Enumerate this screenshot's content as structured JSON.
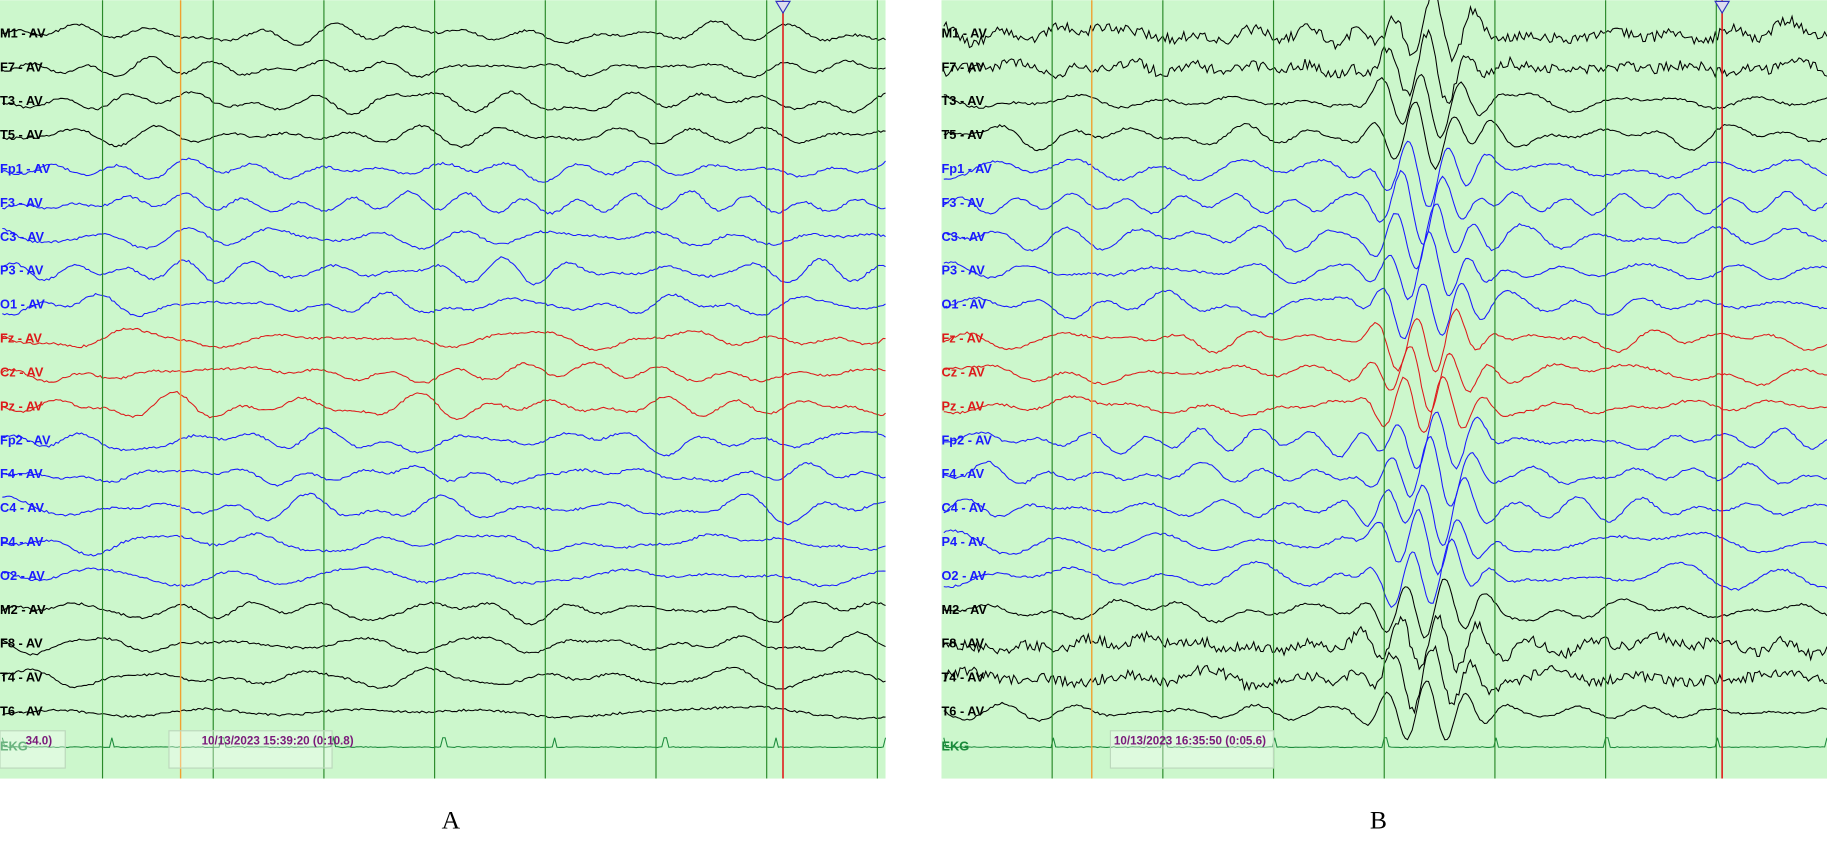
{
  "panels": [
    {
      "caption": "A",
      "timestamp": "10/13/2023 15:39:20 (0:10.8)",
      "corner_text": "34.0)"
    },
    {
      "caption": "B",
      "timestamp": "10/13/2023 16:35:50 (0:05.6)"
    }
  ],
  "channels": [
    {
      "label": "M1 - AV",
      "color": "#000000"
    },
    {
      "label": "F7 - AV",
      "color": "#000000"
    },
    {
      "label": "T3 - AV",
      "color": "#000000"
    },
    {
      "label": "T5 - AV",
      "color": "#000000"
    },
    {
      "label": "Fp1 - AV",
      "color": "#1a1aff"
    },
    {
      "label": "F3 - AV",
      "color": "#1a1aff"
    },
    {
      "label": "C3 - AV",
      "color": "#1a1aff"
    },
    {
      "label": "P3 - AV",
      "color": "#1a1aff"
    },
    {
      "label": "O1 - AV",
      "color": "#1a1aff"
    },
    {
      "label": "Fz - AV",
      "color": "#dd1a1a"
    },
    {
      "label": "Cz - AV",
      "color": "#dd1a1a"
    },
    {
      "label": "Pz - AV",
      "color": "#dd1a1a"
    },
    {
      "label": "Fp2 - AV",
      "color": "#1a1aff"
    },
    {
      "label": "F4 - AV",
      "color": "#1a1aff"
    },
    {
      "label": "C4 - AV",
      "color": "#1a1aff"
    },
    {
      "label": "P4 - AV",
      "color": "#1a1aff"
    },
    {
      "label": "O2 - AV",
      "color": "#1a1aff"
    },
    {
      "label": "M2 - AV",
      "color": "#000000"
    },
    {
      "label": "F8 - AV",
      "color": "#000000"
    },
    {
      "label": "T4 - AV",
      "color": "#000000"
    },
    {
      "label": "T6 - AV",
      "color": "#000000"
    },
    {
      "label": "EKG",
      "color": "#1a8a3a"
    }
  ]
}
